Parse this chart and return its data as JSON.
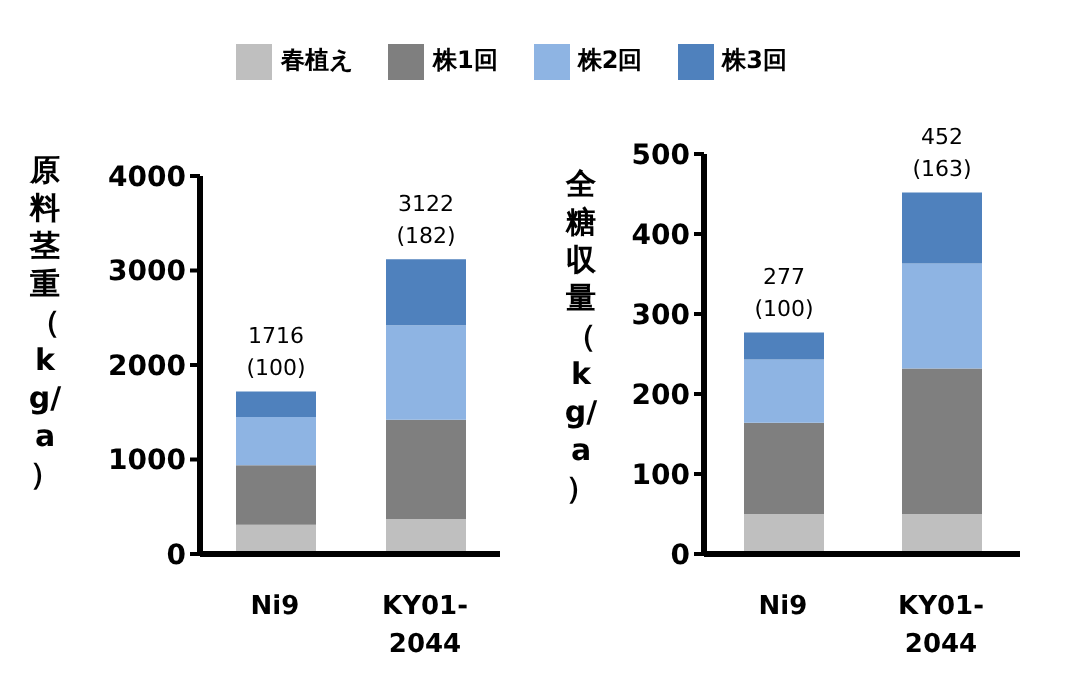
{
  "chart_data": [
    {
      "type": "bar",
      "stacked": true,
      "ylabel": "原料茎重（kg/a）",
      "categories": [
        "Ni9",
        "KY01-2044"
      ],
      "ylim": [
        0,
        4000
      ],
      "yticks": [
        0,
        1000,
        2000,
        3000,
        4000
      ],
      "legend": "top",
      "totals": [
        "1716\n(100)",
        "3122\n(182)"
      ],
      "series": [
        {
          "name": "春植え",
          "color": "#bfbfbf",
          "values": [
            310,
            370
          ]
        },
        {
          "name": "株1回",
          "color": "#7f7f7f",
          "values": [
            630,
            1050
          ]
        },
        {
          "name": "株2回",
          "color": "#8eb4e3",
          "values": [
            510,
            1000
          ]
        },
        {
          "name": "株3回",
          "color": "#4f81bd",
          "values": [
            270,
            700
          ]
        }
      ]
    },
    {
      "type": "bar",
      "stacked": true,
      "ylabel": "全糖収量（kg/a）",
      "categories": [
        "Ni9",
        "KY01-2044"
      ],
      "ylim": [
        0,
        500
      ],
      "yticks": [
        0,
        100,
        200,
        300,
        400,
        500
      ],
      "totals": [
        "277\n(100)",
        "452\n(163)"
      ],
      "series": [
        {
          "color": "#bfbfbf",
          "values": [
            50,
            50
          ]
        },
        {
          "color": "#7f7f7f",
          "values": [
            114,
            182
          ]
        },
        {
          "color": "#8eb4e3",
          "values": [
            79,
            131
          ]
        },
        {
          "color": "#4f81bd",
          "values": [
            34,
            89
          ]
        }
      ]
    }
  ]
}
